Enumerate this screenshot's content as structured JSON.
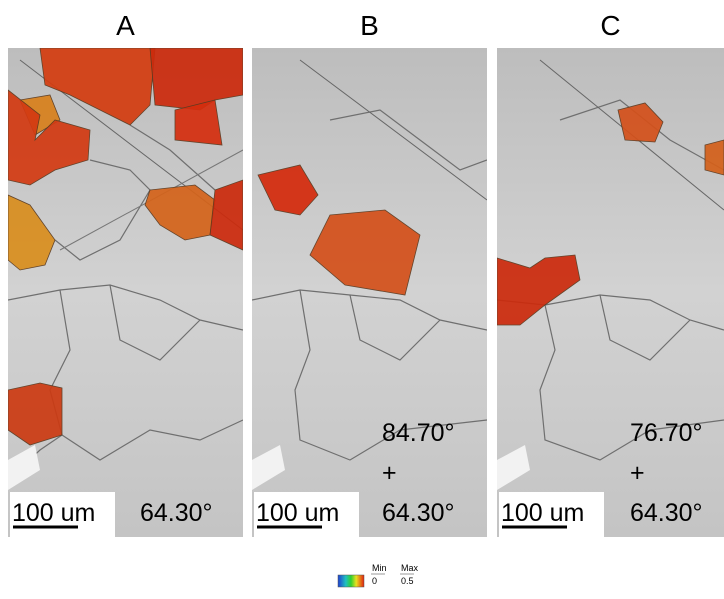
{
  "panels": [
    {
      "label": "A",
      "scale_bar": "100 um",
      "angle_lines": [
        "64.30°"
      ]
    },
    {
      "label": "B",
      "scale_bar": "100 um",
      "angle_lines": [
        "84.70°",
        "+",
        "64.30°"
      ]
    },
    {
      "label": "C",
      "scale_bar": "100 um",
      "angle_lines": [
        "76.70°",
        "+",
        "64.30°"
      ]
    }
  ],
  "legend": {
    "min_label": "Min",
    "min_value": "0",
    "max_label": "Max",
    "max_value": "0.5"
  }
}
